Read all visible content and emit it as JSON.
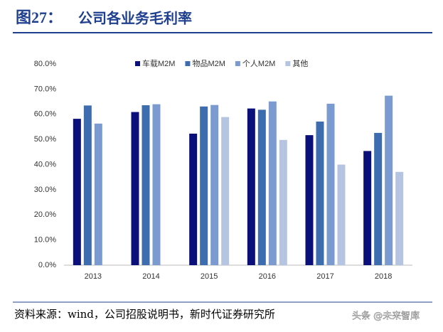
{
  "header": {
    "figure": "图27：",
    "title": "公司各业务毛利率"
  },
  "chart_data": {
    "type": "bar",
    "categories": [
      "2013",
      "2014",
      "2015",
      "2016",
      "2017",
      "2018"
    ],
    "series": [
      {
        "name": "车载M2M",
        "color": "#0a0f7a",
        "values": [
          58.2,
          60.9,
          52.3,
          62.3,
          51.7,
          45.4
        ]
      },
      {
        "name": "物品M2M",
        "color": "#3e6daf",
        "values": [
          63.5,
          63.6,
          63.1,
          61.8,
          57.1,
          52.6
        ]
      },
      {
        "name": "个人M2M",
        "color": "#7b9bd0",
        "values": [
          56.3,
          64.0,
          63.7,
          65.1,
          64.2,
          67.4
        ]
      },
      {
        "name": "其他",
        "color": "#b5c5e1",
        "values": [
          null,
          null,
          58.9,
          49.8,
          40.0,
          37.1
        ]
      }
    ],
    "ylim": [
      0,
      80
    ],
    "yticks": [
      {
        "value": 0,
        "label": "0.0%"
      },
      {
        "value": 10,
        "label": "10.0%"
      },
      {
        "value": 20,
        "label": "20.0%"
      },
      {
        "value": 30,
        "label": "30.0%"
      },
      {
        "value": 40,
        "label": "40.0%"
      },
      {
        "value": 50,
        "label": "50.0%"
      },
      {
        "value": 60,
        "label": "60.0%"
      },
      {
        "value": 70,
        "label": "70.0%"
      },
      {
        "value": 80,
        "label": "80.0%"
      }
    ],
    "grid": false,
    "legend": "top"
  },
  "footer": {
    "source": "资料来源：wind，公司招股说明书，新时代证券研究所",
    "watermark": "头条 @未来智库"
  }
}
